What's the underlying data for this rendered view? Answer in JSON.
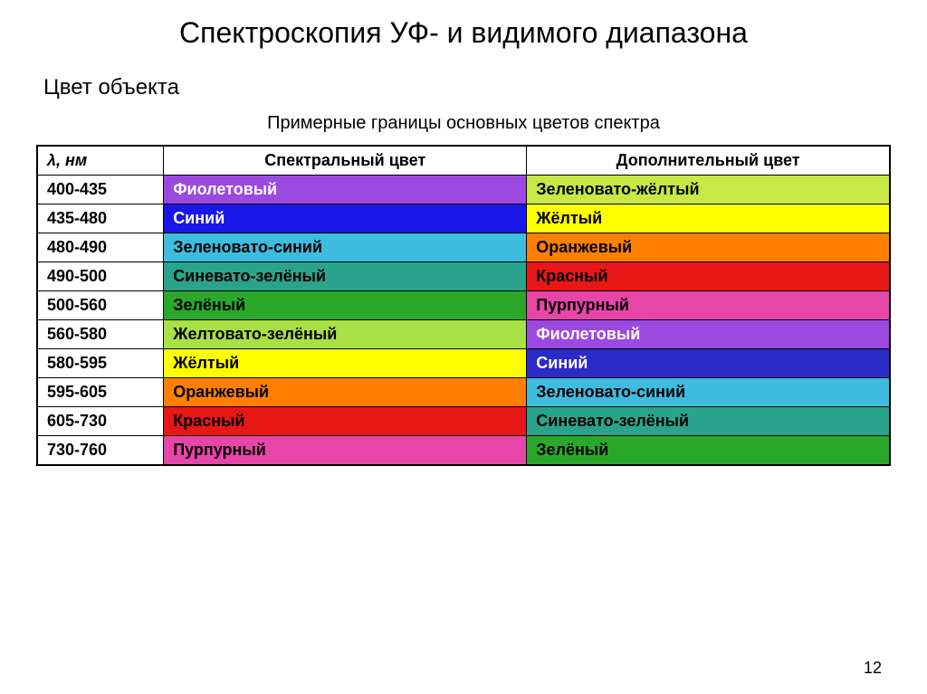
{
  "title": "Спектроскопия УФ- и видимого диапазона",
  "subtitle": "Цвет объекта",
  "caption": "Примерные границы основных цветов спектра",
  "pageNumber": "12",
  "columns": {
    "wavelength": "λ, нм",
    "spectral": "Спектральный цвет",
    "complementary": "Дополнительный цвет"
  },
  "colors": {
    "violet": "#9c49e0",
    "blue": "#1717e8",
    "greenishBlue": "#3ebce0",
    "bluishGreen": "#2aa38c",
    "green": "#2aa82a",
    "yellowishGreen": "#a8e045",
    "yellow": "#ffff00",
    "orange": "#ff8000",
    "red": "#e81717",
    "purple": "#e845a8",
    "greenishYellow": "#c7e845",
    "darkBlue": "#2a2ac7",
    "textWhite": "#ffffff",
    "textBlack": "#000000"
  },
  "rows": [
    {
      "range": "400-435",
      "spectral": {
        "label": "Фиолетовый",
        "bg": "violet",
        "fg": "textWhite"
      },
      "complementary": {
        "label": "Зеленовато-жёлтый",
        "bg": "greenishYellow",
        "fg": "textBlack"
      }
    },
    {
      "range": "435-480",
      "spectral": {
        "label": "Синий",
        "bg": "blue",
        "fg": "textWhite"
      },
      "complementary": {
        "label": "Жёлтый",
        "bg": "yellow",
        "fg": "textBlack"
      }
    },
    {
      "range": "480-490",
      "spectral": {
        "label": "Зеленовато-синий",
        "bg": "greenishBlue",
        "fg": "textBlack"
      },
      "complementary": {
        "label": "Оранжевый",
        "bg": "orange",
        "fg": "textBlack"
      }
    },
    {
      "range": "490-500",
      "spectral": {
        "label": "Синевато-зелёный",
        "bg": "bluishGreen",
        "fg": "textBlack"
      },
      "complementary": {
        "label": "Красный",
        "bg": "red",
        "fg": "textBlack"
      }
    },
    {
      "range": "500-560",
      "spectral": {
        "label": "Зелёный",
        "bg": "green",
        "fg": "textBlack"
      },
      "complementary": {
        "label": "Пурпурный",
        "bg": "purple",
        "fg": "textBlack"
      }
    },
    {
      "range": "560-580",
      "spectral": {
        "label": "Желтовато-зелёный",
        "bg": "yellowishGreen",
        "fg": "textBlack"
      },
      "complementary": {
        "label": "Фиолетовый",
        "bg": "violet",
        "fg": "textWhite"
      }
    },
    {
      "range": "580-595",
      "spectral": {
        "label": "Жёлтый",
        "bg": "yellow",
        "fg": "textBlack"
      },
      "complementary": {
        "label": "Синий",
        "bg": "darkBlue",
        "fg": "textWhite"
      }
    },
    {
      "range": "595-605",
      "spectral": {
        "label": "Оранжевый",
        "bg": "orange",
        "fg": "textBlack"
      },
      "complementary": {
        "label": "Зеленовато-синий",
        "bg": "greenishBlue",
        "fg": "textBlack"
      }
    },
    {
      "range": "605-730",
      "spectral": {
        "label": "Красный",
        "bg": "red",
        "fg": "textBlack"
      },
      "complementary": {
        "label": "Синевато-зелёный",
        "bg": "bluishGreen",
        "fg": "textBlack"
      }
    },
    {
      "range": "730-760",
      "spectral": {
        "label": "Пурпурный",
        "bg": "purple",
        "fg": "textBlack"
      },
      "complementary": {
        "label": "Зелёный",
        "bg": "green",
        "fg": "textBlack"
      }
    }
  ]
}
